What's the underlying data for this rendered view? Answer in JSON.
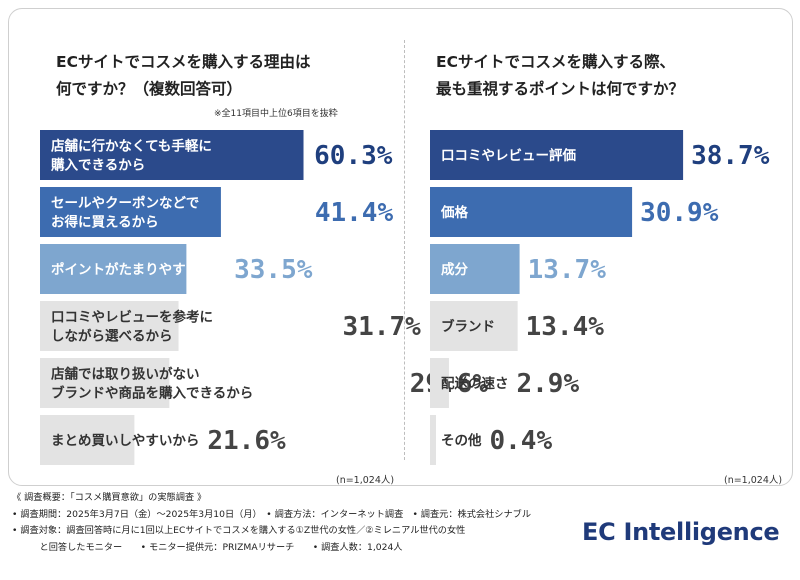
{
  "left": {
    "title_line1": "ECサイトでコスメを購入する理由は",
    "title_line2": "何ですか？（複数回答可）",
    "note": "※全11項目中上位6項目を抜粋",
    "base": "(n=1,024人)"
  },
  "right": {
    "title_line1": "ECサイトでコスメを購入する際、",
    "title_line2": "最も重視するポイントは何ですか？",
    "base": "(n=1,024人)"
  },
  "chart_data": [
    {
      "type": "bar",
      "orientation": "horizontal",
      "title": "ECサイトでコスメを購入する理由は何ですか？（複数回答可）",
      "categories": [
        "店舗に行かなくても手軽に\n購入できるから",
        "セールやクーポンなどで\nお得に買えるから",
        "ポイントがたまりやすいから",
        "口コミやレビューを参考に\nしながら選べるから",
        "店舗では取り扱いがない\nブランドや商品を購入できるから",
        "まとめ買いしやすいから"
      ],
      "values": [
        60.3,
        41.4,
        33.5,
        31.7,
        29.6,
        21.6
      ],
      "value_labels": [
        "60.3%",
        "41.4%",
        "33.5%",
        "31.7%",
        "29.6%",
        "21.6%"
      ],
      "unit": "%",
      "colors": [
        "#2b4a8b",
        "#3d6cb0",
        "#7ea6cf",
        "#e3e3e3",
        "#e3e3e3",
        "#e3e3e3"
      ],
      "label_colors": [
        "#1f3f7e",
        "#3d6cb0",
        "#7ea6cf",
        "#444444",
        "#444444",
        "#444444"
      ]
    },
    {
      "type": "bar",
      "orientation": "horizontal",
      "title": "ECサイトでコスメを購入する際、最も重視するポイントは何ですか？",
      "categories": [
        "口コミやレビュー評価",
        "価格",
        "成分",
        "ブランド",
        "配送の速さ",
        "その他"
      ],
      "values": [
        38.7,
        30.9,
        13.7,
        13.4,
        2.9,
        0.4
      ],
      "value_labels": [
        "38.7%",
        "30.9%",
        "13.7%",
        "13.4%",
        "2.9%",
        "0.4%"
      ],
      "unit": "%",
      "colors": [
        "#2b4a8b",
        "#3d6cb0",
        "#7ea6cf",
        "#e3e3e3",
        "#e3e3e3",
        "#e3e3e3"
      ],
      "label_colors": [
        "#1f3f7e",
        "#3d6cb0",
        "#7ea6cf",
        "#444444",
        "#444444",
        "#444444"
      ]
    }
  ],
  "footer": {
    "line1": "《 調査概要：「コスメ購買意欲」の実態調査 》",
    "line2": "• 調査期間：2025年3月7日（金）〜2025年3月10日（月）　• 調査方法：インターネット調査　• 調査元：株式会社シナブル",
    "line3": "• 調査対象：調査回答時に月に1回以上ECサイトでコスメを購入する①Z世代の女性／②ミレニアル世代の女性",
    "line4": "　　　と回答したモニター　　• モニター提供元：PRIZMAリサーチ　　• 調査人数：1,024人"
  },
  "logo": "EC Intelligence"
}
